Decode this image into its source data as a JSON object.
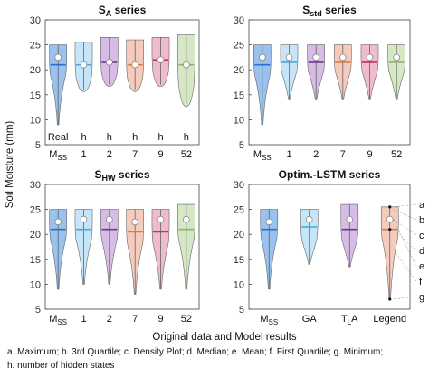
{
  "figure": {
    "ylabel": "Soil Moisture (mm)",
    "xlabel": "Original data and Model results",
    "footnote_line1": "a. Maximum; b. 3rd Quartile; c. Density Plot; d. Median; e. Mean; f. First Quartile; g. Minimum;",
    "footnote_line2": "h. number of hidden states"
  },
  "colors": {
    "Mss": "#7aaee8",
    "h1": "#b4dcf5",
    "h2": "#c9a6dc",
    "h7": "#f2b9a8",
    "h9": "#e9a6bf",
    "h52": "#c7dfb0",
    "GA": "#b4dcf5",
    "TLA": "#c9a6dc",
    "Legend": "#f2b9a8",
    "median_Mss": "#2a6fcf",
    "median_h1": "#4aa7e0",
    "median_h2": "#7a2f9e",
    "median_h7": "#e07a3a",
    "median_h9": "#c2334f",
    "median_h52": "#8fb56a"
  },
  "chart_data": [
    {
      "type": "violin",
      "title_main": "S",
      "title_sub": "A",
      "title_rest": " series",
      "ylim": [
        5,
        30
      ],
      "yticks": [
        5,
        10,
        15,
        20,
        25,
        30
      ],
      "category_labels": [
        "Real",
        "h",
        "h",
        "h",
        "h",
        "h"
      ],
      "categories": [
        "M_SS",
        "1",
        "2",
        "7",
        "9",
        "52"
      ],
      "series": [
        {
          "max": 25,
          "q3": 25,
          "median": 21,
          "mean": 22.5,
          "q1": 17,
          "min": 9
        },
        {
          "max": 25.5,
          "q3": 25.5,
          "median": 21,
          "mean": 21,
          "q1": 16,
          "min": 16
        },
        {
          "max": 26.5,
          "q3": 26.5,
          "median": 21.5,
          "mean": 21.5,
          "q1": 17,
          "min": 17
        },
        {
          "max": 26,
          "q3": 26,
          "median": 21,
          "mean": 21,
          "q1": 16,
          "min": 16
        },
        {
          "max": 26.5,
          "q3": 26.5,
          "median": 22,
          "mean": 22,
          "q1": 17,
          "min": 17
        },
        {
          "max": 27,
          "q3": 27,
          "median": 21,
          "mean": 21,
          "q1": 13,
          "min": 13
        }
      ]
    },
    {
      "type": "violin",
      "title_main": "S",
      "title_sub": "std",
      "title_rest": " series",
      "ylim": [
        5,
        30
      ],
      "yticks": [
        5,
        10,
        15,
        20,
        25,
        30
      ],
      "categories": [
        "M_SS",
        "1",
        "2",
        "7",
        "9",
        "52"
      ],
      "series": [
        {
          "max": 25,
          "q3": 25,
          "median": 21,
          "mean": 22.5,
          "q1": 17,
          "min": 9
        },
        {
          "max": 25,
          "q3": 25,
          "median": 21.5,
          "mean": 22.5,
          "q1": 18,
          "min": 14
        },
        {
          "max": 25,
          "q3": 25,
          "median": 21.5,
          "mean": 22.5,
          "q1": 18,
          "min": 14
        },
        {
          "max": 25,
          "q3": 25,
          "median": 21.5,
          "mean": 22.5,
          "q1": 18,
          "min": 14
        },
        {
          "max": 25,
          "q3": 25,
          "median": 21.5,
          "mean": 22.5,
          "q1": 18,
          "min": 14
        },
        {
          "max": 25,
          "q3": 25,
          "median": 21.5,
          "mean": 22.5,
          "q1": 18,
          "min": 14
        }
      ]
    },
    {
      "type": "violin",
      "title_main": "S",
      "title_sub": "HW",
      "title_rest": " series",
      "ylim": [
        5,
        30
      ],
      "yticks": [
        5,
        10,
        15,
        20,
        25,
        30
      ],
      "categories": [
        "M_SS",
        "1",
        "2",
        "7",
        "9",
        "52"
      ],
      "series": [
        {
          "max": 25,
          "q3": 25,
          "median": 21,
          "mean": 22.5,
          "q1": 17,
          "min": 9
        },
        {
          "max": 25,
          "q3": 25,
          "median": 21,
          "mean": 23,
          "q1": 17,
          "min": 10
        },
        {
          "max": 25,
          "q3": 25,
          "median": 21,
          "mean": 23,
          "q1": 17,
          "min": 10
        },
        {
          "max": 25,
          "q3": 25,
          "median": 20.5,
          "mean": 22.5,
          "q1": 16,
          "min": 8
        },
        {
          "max": 25,
          "q3": 25,
          "median": 20.5,
          "mean": 23,
          "q1": 16,
          "min": 9
        },
        {
          "max": 26,
          "q3": 26,
          "median": 21,
          "mean": 23,
          "q1": 17,
          "min": 9
        }
      ]
    },
    {
      "type": "violin",
      "title_main": "Optim.-LSTM series",
      "title_sub": "",
      "title_rest": "",
      "ylim": [
        5,
        30
      ],
      "yticks": [
        5,
        10,
        15,
        20,
        25,
        30
      ],
      "categories": [
        "M_SS",
        "GA",
        "T_LA",
        "Legend"
      ],
      "series": [
        {
          "max": 25,
          "q3": 25,
          "median": 21,
          "mean": 22.5,
          "q1": 17,
          "min": 9
        },
        {
          "max": 25,
          "q3": 25,
          "median": 21.5,
          "mean": 23,
          "q1": 17,
          "min": 14
        },
        {
          "max": 26,
          "q3": 26,
          "median": 21,
          "mean": 23,
          "q1": 17,
          "min": 13.5
        },
        {
          "max": 25.5,
          "q3": 25,
          "median": 21,
          "mean": 23,
          "q1": 17,
          "min": 7
        }
      ],
      "legend_letters": [
        "a",
        "b",
        "c",
        "d",
        "e",
        "f",
        "g"
      ]
    }
  ]
}
